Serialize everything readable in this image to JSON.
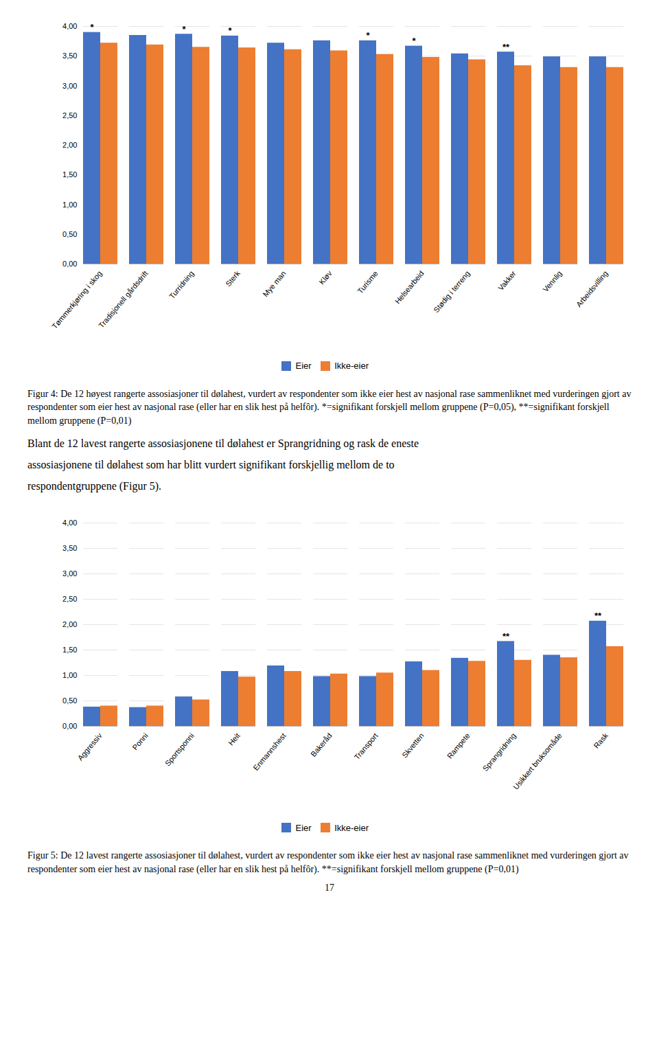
{
  "chart_data": [
    {
      "type": "bar",
      "categories": [
        "Tømmerkjøring i skog",
        "Tradisjonell gårdsdrift",
        "Turridning",
        "Sterk",
        "Mye man",
        "Kløv",
        "Turisme",
        "Helsearbeid",
        "Stødig i terreng",
        "Vakker",
        "Vennlig",
        "Arbeidsvilling"
      ],
      "series": [
        {
          "name": "Eier",
          "color": "#4472C4",
          "values": [
            3.9,
            3.85,
            3.87,
            3.84,
            3.72,
            3.76,
            3.76,
            3.67,
            3.54,
            3.57,
            3.49,
            3.49
          ]
        },
        {
          "name": "Ikke-eier",
          "color": "#ED7D31",
          "values": [
            3.72,
            3.69,
            3.65,
            3.64,
            3.61,
            3.59,
            3.53,
            3.48,
            3.44,
            3.34,
            3.31,
            3.31
          ]
        }
      ],
      "annotations": [
        {
          "category": "Tømmerkjøring i skog",
          "series": "Eier",
          "text": "*"
        },
        {
          "category": "Turridning",
          "series": "Eier",
          "text": "*"
        },
        {
          "category": "Sterk",
          "series": "Eier",
          "text": "*"
        },
        {
          "category": "Turisme",
          "series": "Eier",
          "text": "*"
        },
        {
          "category": "Helsearbeid",
          "series": "Eier",
          "text": "*"
        },
        {
          "category": "Vakker",
          "series": "Eier",
          "text": "**"
        }
      ],
      "ylim": [
        0.0,
        4.0
      ],
      "yticks": [
        {
          "value": 0.0,
          "label": "0,00"
        },
        {
          "value": 0.5,
          "label": "0,50"
        },
        {
          "value": 1.0,
          "label": "1,00"
        },
        {
          "value": 1.5,
          "label": "1,50"
        },
        {
          "value": 2.0,
          "label": "2,00"
        },
        {
          "value": 2.5,
          "label": "2,50"
        },
        {
          "value": 3.0,
          "label": "3,00"
        },
        {
          "value": 3.5,
          "label": "3,50"
        },
        {
          "value": 4.0,
          "label": "4,00"
        }
      ],
      "grid": true,
      "legend": "bottom",
      "caption": "Figur 4: De 12 høyest rangerte assosiasjoner til dølahest, vurdert av respondenter som ikke eier hest av nasjonal rase sammenliknet med vurderingen gjort av respondenter som eier hest av nasjonal rase (eller har en slik hest på helfôr). *=signifikant forskjell mellom gruppene (P=0,05), **=signifikant forskjell mellom gruppene (P=0,01)"
    },
    {
      "type": "bar",
      "categories": [
        "Aggressiv",
        "Ponni",
        "Sportsponni",
        "Heit",
        "Enmannshest",
        "Bakeråd",
        "Transport",
        "Skvetten",
        "Rampete",
        "Sprangridning",
        "Usikkert bruksomåde",
        "Rask"
      ],
      "series": [
        {
          "name": "Eier",
          "color": "#4472C4",
          "values": [
            0.38,
            0.37,
            0.58,
            1.08,
            1.19,
            0.98,
            0.98,
            1.27,
            1.34,
            1.67,
            1.4,
            2.07
          ]
        },
        {
          "name": "Ikke-eier",
          "color": "#ED7D31",
          "values": [
            0.4,
            0.4,
            0.52,
            0.97,
            1.08,
            1.03,
            1.05,
            1.1,
            1.28,
            1.3,
            1.35,
            1.57
          ]
        }
      ],
      "annotations": [
        {
          "category": "Sprangridning",
          "series": "Eier",
          "text": "**"
        },
        {
          "category": "Rask",
          "series": "Eier",
          "text": "**"
        }
      ],
      "ylim": [
        0.0,
        4.0
      ],
      "yticks": [
        {
          "value": 0.0,
          "label": "0,00"
        },
        {
          "value": 0.5,
          "label": "0,50"
        },
        {
          "value": 1.0,
          "label": "1,00"
        },
        {
          "value": 1.5,
          "label": "1,50"
        },
        {
          "value": 2.0,
          "label": "2,00"
        },
        {
          "value": 2.5,
          "label": "2,50"
        },
        {
          "value": 3.0,
          "label": "3,00"
        },
        {
          "value": 3.5,
          "label": "3,50"
        },
        {
          "value": 4.0,
          "label": "4,00"
        }
      ],
      "grid": true,
      "legend": "bottom",
      "caption": "Figur 5: De 12 lavest rangerte assosiasjoner til dølahest, vurdert av respondenter som ikke eier hest av nasjonal rase sammenliknet med vurderingen gjort av respondenter som eier hest av nasjonal rase (eller har en slik hest på helfôr). **=signifikant forskjell mellom gruppene (P=0,01)"
    }
  ],
  "body_text": [
    "Blant de 12 lavest rangerte assosiasjonene til dølahest er Sprangridning og rask de eneste",
    "assosiasjonene til dølahest som har blitt vurdert signifikant forskjellig mellom de to",
    "respondentgruppene (Figur 5)."
  ],
  "page_number": "17"
}
